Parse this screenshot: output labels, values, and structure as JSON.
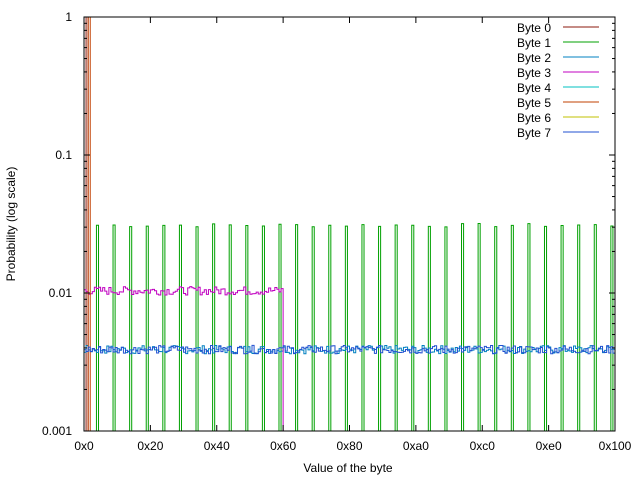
{
  "chart_data": {
    "type": "line",
    "xlabel": "Value of the byte",
    "ylabel": "Probability (log scale)",
    "x_scale": "linear",
    "y_scale": "log",
    "xlim": [
      0,
      256
    ],
    "ylim": [
      0.001,
      1
    ],
    "grid": false,
    "legend_position": "top-right",
    "x_ticks": [
      {
        "value": 0,
        "label": "0x0"
      },
      {
        "value": 32,
        "label": "0x20"
      },
      {
        "value": 64,
        "label": "0x40"
      },
      {
        "value": 96,
        "label": "0x60"
      },
      {
        "value": 128,
        "label": "0x80"
      },
      {
        "value": 160,
        "label": "0xa0"
      },
      {
        "value": 192,
        "label": "0xc0"
      },
      {
        "value": 224,
        "label": "0xe0"
      },
      {
        "value": 256,
        "label": "0x100"
      }
    ],
    "y_ticks": [
      {
        "value": 1,
        "label": "1"
      },
      {
        "value": 0.1,
        "label": "0.1"
      },
      {
        "value": 0.01,
        "label": "0.01"
      },
      {
        "value": 0.001,
        "label": "0.001"
      }
    ],
    "series": [
      {
        "name": "Byte 0",
        "color": "#8b1a0e",
        "pattern": "spike",
        "points": [
          [
            1,
            1
          ],
          [
            2,
            1
          ]
        ]
      },
      {
        "name": "Byte 1",
        "color": "#00a000",
        "pattern": "periodic",
        "start": 6,
        "step": 8,
        "count": 32,
        "value": 0.031,
        "points": []
      },
      {
        "name": "Byte 2",
        "color": "#0080c0",
        "pattern": "uniform",
        "x_range": [
          0,
          256
        ],
        "value": 0.0039,
        "points": []
      },
      {
        "name": "Byte 3",
        "color": "#c000c0",
        "pattern": "uniform",
        "x_range": [
          0,
          96
        ],
        "value": 0.0104,
        "points": []
      },
      {
        "name": "Byte 4",
        "color": "#00c0c0",
        "pattern": "none",
        "points": []
      },
      {
        "name": "Byte 5",
        "color": "#c04000",
        "pattern": "spike",
        "points": [
          [
            2,
            1
          ],
          [
            3,
            1
          ]
        ]
      },
      {
        "name": "Byte 6",
        "color": "#c0c000",
        "pattern": "none",
        "points": []
      },
      {
        "name": "Byte 7",
        "color": "#2050d0",
        "pattern": "uniform",
        "x_range": [
          0,
          256
        ],
        "value": 0.0039,
        "points": []
      }
    ]
  }
}
